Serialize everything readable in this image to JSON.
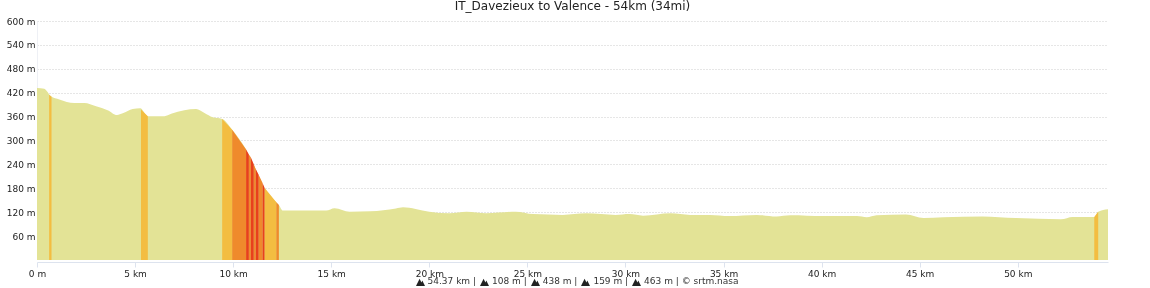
{
  "chart_data": {
    "type": "area",
    "title": "IT_Davezieux to Valence - 54km (34mi)",
    "xlim": [
      0,
      54.6
    ],
    "ylim": [
      60,
      600
    ],
    "xticks": [
      {
        "value": 0,
        "label": "0 m"
      },
      {
        "value": 5,
        "label": "5 km"
      },
      {
        "value": 10,
        "label": "10 km"
      },
      {
        "value": 15,
        "label": "15 km"
      },
      {
        "value": 20,
        "label": "20 km"
      },
      {
        "value": 25,
        "label": "25 km"
      },
      {
        "value": 30,
        "label": "30 km"
      },
      {
        "value": 35,
        "label": "35 km"
      },
      {
        "value": 40,
        "label": "40 km"
      },
      {
        "value": 45,
        "label": "45 km"
      },
      {
        "value": 50,
        "label": "50 km"
      }
    ],
    "yticks": [
      {
        "value": 60,
        "label": "60 m"
      },
      {
        "value": 120,
        "label": "120 m"
      },
      {
        "value": 180,
        "label": "180 m"
      },
      {
        "value": 240,
        "label": "240 m"
      },
      {
        "value": 300,
        "label": "300 m"
      },
      {
        "value": 360,
        "label": "360 m"
      },
      {
        "value": 420,
        "label": "420 m"
      },
      {
        "value": 480,
        "label": "480 m"
      },
      {
        "value": 540,
        "label": "540 m"
      },
      {
        "value": 600,
        "label": "600 m"
      }
    ],
    "grid": "y",
    "series": [
      {
        "color": "#e3e396",
        "x": [
          0,
          0.37,
          0.71,
          1.14,
          1.9,
          2.41,
          3.01,
          3.6,
          4.08,
          4.37,
          4.88,
          5.26,
          5.65,
          6.5,
          6.84,
          7.51,
          8.11,
          8.54,
          8.96,
          9.44,
          9.95,
          10.66,
          11.17,
          11.68,
          12.33,
          12.54,
          14.74,
          15.17,
          15.94,
          17.0,
          18.3,
          18.66,
          19.3,
          20.0,
          21.04,
          21.9,
          22.9,
          24.4,
          25.3,
          26.8,
          28.0,
          29.5,
          30.2,
          30.9,
          32.3,
          33.3,
          34.3,
          35.3,
          36.7,
          37.7,
          38.4,
          40.1,
          41.8,
          42.3,
          42.8,
          44.3,
          45.2,
          46.2,
          48.2,
          49.9,
          52.2,
          52.8,
          53.9,
          54.1,
          54.6
        ],
        "values": [
          432,
          430,
          411,
          403,
          394,
          394,
          386,
          376,
          364,
          368,
          379,
          381,
          361,
          361,
          367,
          376,
          379,
          369,
          358,
          354,
          327,
          277,
          226,
          172,
          138,
          124,
          124,
          130,
          121,
          122,
          129,
          132,
          128,
          121,
          117,
          121,
          117,
          121,
          115,
          113,
          117,
          113,
          115,
          111,
          117,
          113,
          113,
          110,
          113,
          109,
          112,
          110,
          110,
          107,
          112,
          114,
          105,
          107,
          109,
          105,
          102,
          108,
          108,
          121,
          127
        ]
      },
      {
        "color": "#f3bd41",
        "x": [
          0.62,
          0.74,
          3,
          5.3,
          5.65,
          7,
          9.44,
          9.95,
          11,
          11.6,
          12.2,
          30,
          53.9,
          54.1
        ],
        "values": [
          415,
          410,
          null,
          378,
          361,
          null,
          354,
          327,
          null,
          181,
          145,
          null,
          108,
          121
        ]
      },
      {
        "color": "#ef8a2c",
        "x": [
          9.95,
          10.66,
          10.73,
          10.8,
          10.9,
          10.97,
          11.05,
          11.15,
          11.22,
          11.3,
          11.5,
          11.85,
          12.2,
          12.33
        ],
        "values": [
          327,
          277,
          null,
          265,
          258,
          null,
          240,
          228,
          null,
          214,
          193,
          null,
          145,
          138
        ]
      },
      {
        "color": "#e8401c",
        "x": [
          10.66,
          10.8,
          10.85,
          10.9,
          11.05,
          11.1,
          11.15,
          11.3,
          11.4,
          11.5,
          11.6
        ],
        "values": [
          277,
          265,
          null,
          258,
          240,
          null,
          228,
          214,
          null,
          193,
          181
        ]
      }
    ],
    "annotations": [
      "54.37 km |",
      "108 m |",
      "438 m |",
      "159 m |",
      "463 m | © srtm.nasa"
    ]
  }
}
